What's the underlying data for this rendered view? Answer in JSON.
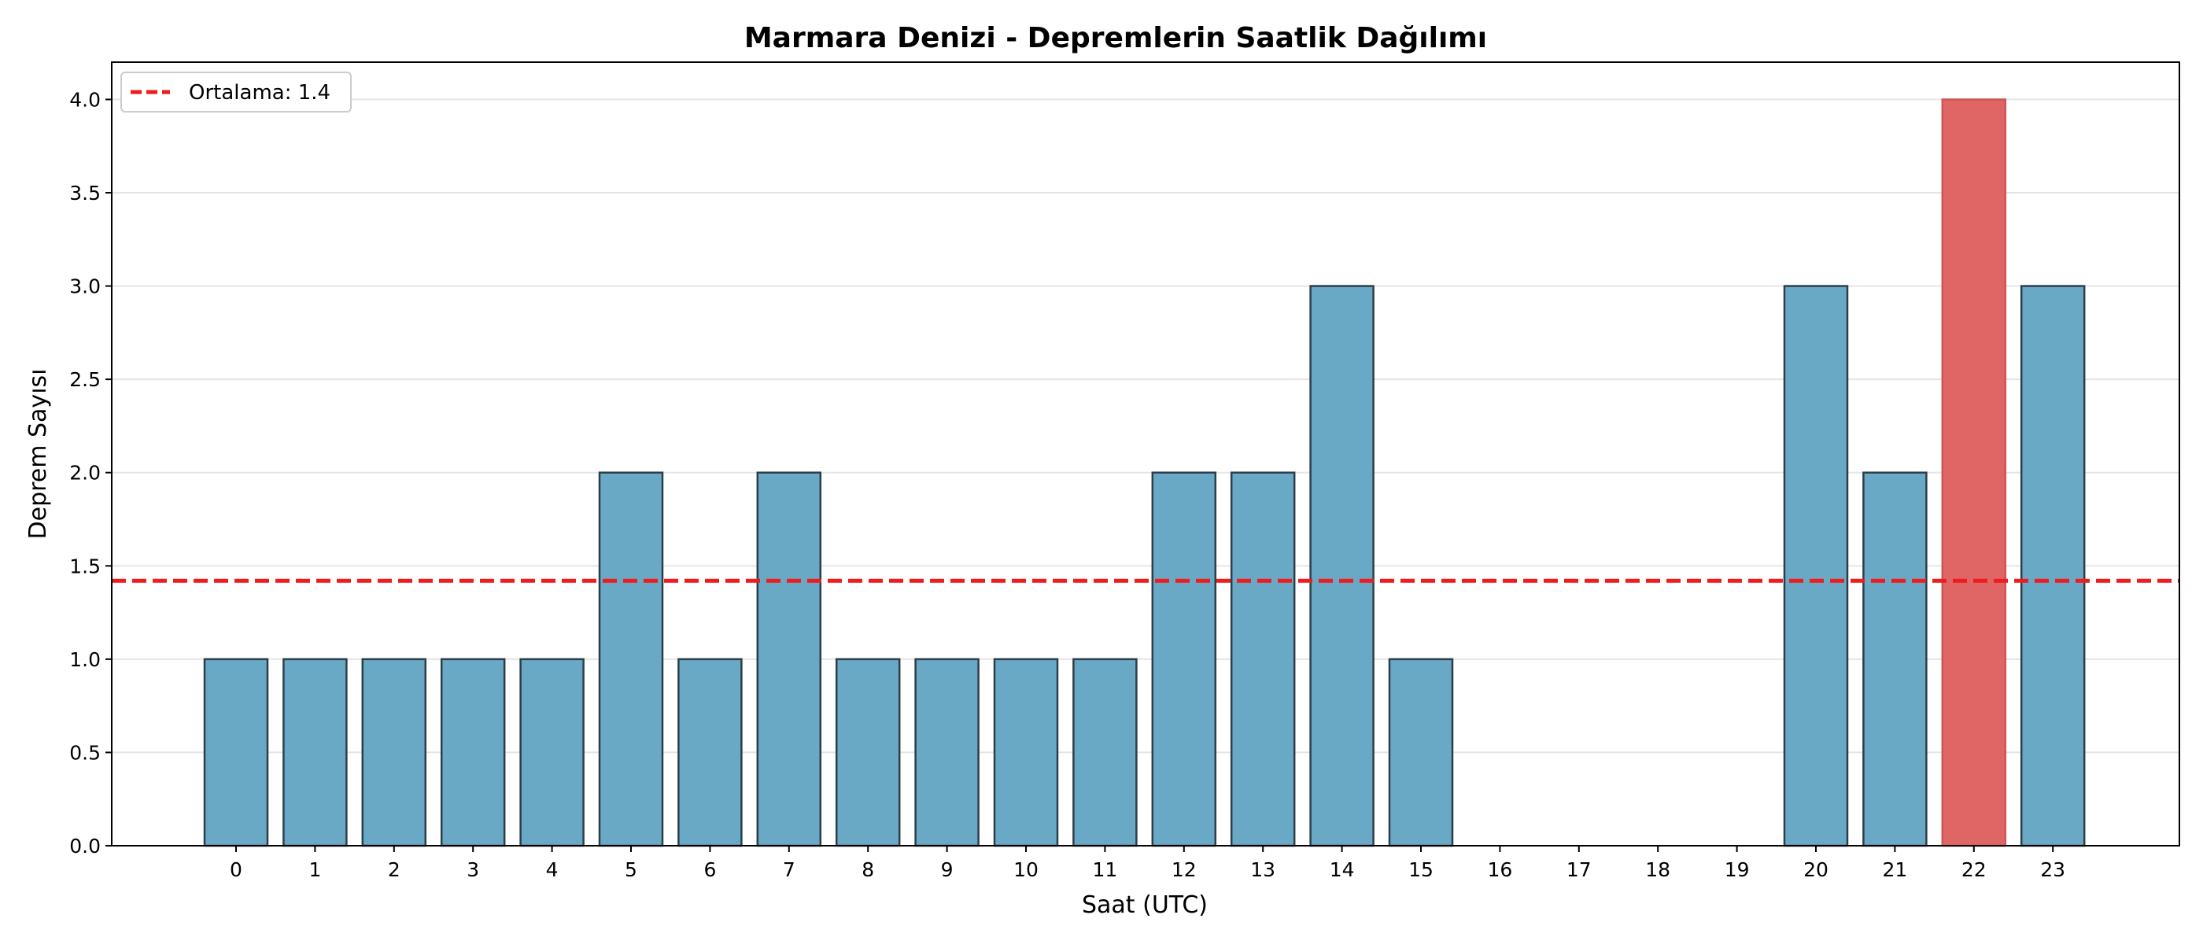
{
  "chart_data": {
    "type": "bar",
    "title": "Marmara Denizi - Depremlerin Saatlik Dağılımı",
    "xlabel": "Saat (UTC)",
    "ylabel": "Deprem Sayısı",
    "categories": [
      "0",
      "1",
      "2",
      "3",
      "4",
      "5",
      "6",
      "7",
      "8",
      "9",
      "10",
      "11",
      "12",
      "13",
      "14",
      "15",
      "16",
      "17",
      "18",
      "19",
      "20",
      "21",
      "22",
      "23"
    ],
    "values": [
      1,
      1,
      1,
      1,
      1,
      2,
      1,
      2,
      1,
      1,
      1,
      1,
      2,
      2,
      3,
      1,
      0,
      0,
      0,
      0,
      3,
      2,
      4,
      3
    ],
    "ylim": [
      0,
      4.2
    ],
    "yticks": [
      "0.0",
      "0.5",
      "1.0",
      "1.5",
      "2.0",
      "2.5",
      "3.0",
      "3.5",
      "4.0"
    ],
    "mean_line": {
      "value": 1.42,
      "label": "Ortalama: 1.4",
      "color": "#ee1c1c"
    },
    "highlight_category": "22",
    "colors": {
      "bar": "#6aa9c6",
      "highlight": "#e06666",
      "edge": "#2c3e4a",
      "grid": "#e5e5e5"
    },
    "grid": true,
    "legend_position": "top-left"
  }
}
